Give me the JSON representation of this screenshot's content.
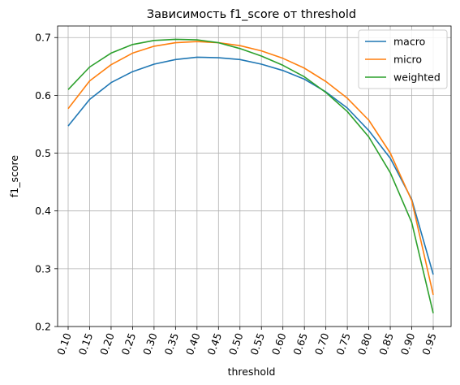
{
  "chart_data": {
    "type": "line",
    "title": "Зависимость f1_score от threshold",
    "xlabel": "threshold",
    "ylabel": "f1_score",
    "x": [
      "0.10",
      "0.15",
      "0.20",
      "0.25",
      "0.30",
      "0.35",
      "0.40",
      "0.45",
      "0.50",
      "0.55",
      "0.60",
      "0.65",
      "0.70",
      "0.75",
      "0.80",
      "0.85",
      "0.90",
      "0.95"
    ],
    "ylim": [
      0.2,
      0.72
    ],
    "yticks": [
      "0.2",
      "0.3",
      "0.4",
      "0.5",
      "0.6",
      "0.7"
    ],
    "grid": true,
    "legend_position": "top-right",
    "series": [
      {
        "name": "macro",
        "color": "#1f77b4",
        "values": [
          0.547,
          0.593,
          0.622,
          0.641,
          0.654,
          0.662,
          0.666,
          0.665,
          0.662,
          0.654,
          0.643,
          0.628,
          0.606,
          0.578,
          0.539,
          0.491,
          0.42,
          0.29
        ]
      },
      {
        "name": "micro",
        "color": "#ff7f0e",
        "values": [
          0.577,
          0.625,
          0.653,
          0.673,
          0.685,
          0.691,
          0.693,
          0.691,
          0.686,
          0.677,
          0.664,
          0.647,
          0.624,
          0.595,
          0.557,
          0.5,
          0.418,
          0.255
        ]
      },
      {
        "name": "weighted",
        "color": "#2ca02c",
        "values": [
          0.61,
          0.649,
          0.673,
          0.688,
          0.695,
          0.697,
          0.696,
          0.691,
          0.681,
          0.668,
          0.652,
          0.632,
          0.605,
          0.572,
          0.528,
          0.466,
          0.38,
          0.223
        ]
      }
    ]
  }
}
